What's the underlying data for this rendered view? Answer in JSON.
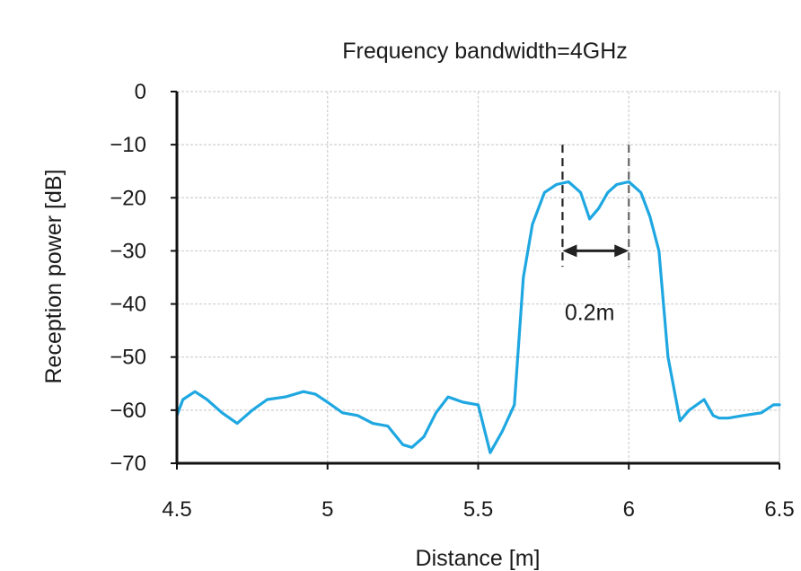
{
  "chart_data": {
    "type": "line",
    "title": "Frequency bandwidth=4GHz",
    "xlabel": "Distance [m]",
    "ylabel": "Reception power [dB]",
    "xlim": [
      4.5,
      6.5
    ],
    "ylim": [
      -70,
      0
    ],
    "xticks": [
      4.5,
      5,
      5.5,
      6,
      6.5
    ],
    "xtick_labels": [
      "4.5",
      "5",
      "5.5",
      "6",
      "6.5"
    ],
    "yticks": [
      0,
      -10,
      -20,
      -30,
      -40,
      -50,
      -60,
      -70
    ],
    "ytick_labels": [
      "0",
      "−10",
      "−20",
      "−30",
      "−40",
      "−50",
      "−60",
      "−70"
    ],
    "grid": true,
    "series_color": "#1ea7e1",
    "series": [
      {
        "x": [
          4.5,
          4.52,
          4.56,
          4.6,
          4.65,
          4.7,
          4.75,
          4.8,
          4.86,
          4.92,
          4.96,
          5.0,
          5.05,
          5.1,
          5.15,
          5.2,
          5.25,
          5.28,
          5.32,
          5.36,
          5.4,
          5.45,
          5.5,
          5.54,
          5.58,
          5.62,
          5.65,
          5.68,
          5.72,
          5.76,
          5.8,
          5.84,
          5.87,
          5.9,
          5.93,
          5.96,
          6.0,
          6.04,
          6.07,
          6.1,
          6.13,
          6.17,
          6.2,
          6.25,
          6.28,
          6.3,
          6.33,
          6.38,
          6.44,
          6.48,
          6.5
        ],
        "y": [
          -61,
          -58,
          -56.5,
          -58,
          -60.5,
          -62.5,
          -60,
          -58,
          -57.5,
          -56.5,
          -57,
          -58.5,
          -60.5,
          -61,
          -62.5,
          -63,
          -66.5,
          -67,
          -65,
          -60.5,
          -57.5,
          -58.5,
          -59,
          -68,
          -64,
          -59,
          -35,
          -25,
          -19,
          -17.5,
          -17,
          -19,
          -24,
          -22,
          -19,
          -17.5,
          -17,
          -19,
          -23.5,
          -30,
          -50,
          -62,
          -60,
          -58,
          -61,
          -61.5,
          -61.5,
          -61,
          -60.5,
          -59,
          -59
        ]
      }
    ],
    "annotations": [
      {
        "text": "0.2m",
        "x": 5.87,
        "y": -40,
        "from_x": 5.78,
        "to_x": 6.0,
        "arrow_y": -30
      }
    ]
  }
}
